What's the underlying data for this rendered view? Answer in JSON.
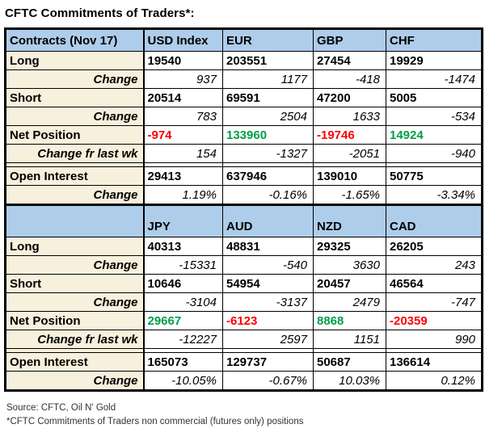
{
  "title": "CFTC Commitments of Traders*:",
  "colors": {
    "header_bg": "#aecdeb",
    "label_bg": "#f6f0dc",
    "positive": "#009e49",
    "negative": "#ff0000",
    "border": "#000000"
  },
  "table_view": {
    "sections": [
      {
        "header": [
          "Contracts (Nov 17)",
          "USD Index",
          "EUR",
          "GBP",
          "CHF"
        ],
        "rows": [
          {
            "type": "bold",
            "label": "Long",
            "values": [
              "19540",
              "203551",
              "27454",
              "19929"
            ]
          },
          {
            "type": "change",
            "label": "Change",
            "values": [
              "937",
              "1177",
              "-418",
              "-1474"
            ]
          },
          {
            "type": "bold",
            "label": "Short",
            "values": [
              "20514",
              "69591",
              "47200",
              "5005"
            ]
          },
          {
            "type": "change",
            "label": "Change",
            "values": [
              "783",
              "2504",
              "1633",
              "-534"
            ]
          },
          {
            "type": "net",
            "label": "Net Position",
            "values": [
              "-974",
              "133960",
              "-19746",
              "14924"
            ]
          },
          {
            "type": "change",
            "label": "Change fr last wk",
            "values": [
              "154",
              "-1327",
              "-2051",
              "-940"
            ]
          },
          {
            "type": "spacer"
          },
          {
            "type": "bold",
            "label": "Open Interest",
            "values": [
              "29413",
              "637946",
              "139010",
              "50775"
            ]
          },
          {
            "type": "change",
            "label": "Change",
            "values": [
              "1.19%",
              "-0.16%",
              "-1.65%",
              "-3.34%"
            ]
          }
        ]
      },
      {
        "header": [
          "",
          "JPY",
          "AUD",
          "NZD",
          "CAD"
        ],
        "rows": [
          {
            "type": "bold",
            "label": "Long",
            "values": [
              "40313",
              "48831",
              "29325",
              "26205"
            ]
          },
          {
            "type": "change",
            "label": "Change",
            "values": [
              "-15331",
              "-540",
              "3630",
              "243"
            ]
          },
          {
            "type": "bold",
            "label": "Short",
            "values": [
              "10646",
              "54954",
              "20457",
              "46564"
            ]
          },
          {
            "type": "change",
            "label": "Change",
            "values": [
              "-3104",
              "-3137",
              "2479",
              "-747"
            ]
          },
          {
            "type": "net",
            "label": "Net Position",
            "values": [
              "29667",
              "-6123",
              "8868",
              "-20359"
            ]
          },
          {
            "type": "change",
            "label": "Change fr last wk",
            "values": [
              "-12227",
              "2597",
              "1151",
              "990"
            ]
          },
          {
            "type": "spacer"
          },
          {
            "type": "bold",
            "label": "Open Interest",
            "values": [
              "165073",
              "129737",
              "50687",
              "136614"
            ]
          },
          {
            "type": "change",
            "label": "Change",
            "values": [
              "-10.05%",
              "-0.67%",
              "10.03%",
              "0.12%"
            ]
          }
        ]
      }
    ]
  },
  "footer": {
    "source": "Source: CFTC, Oil N' Gold",
    "note": "*CFTC Commitments of Traders non commercial (futures only) positions"
  },
  "chart_data": {
    "type": "table",
    "title": "CFTC Commitments of Traders*:",
    "tables": [
      {
        "columns": [
          "Contracts (Nov 17)",
          "USD Index",
          "EUR",
          "GBP",
          "CHF"
        ],
        "rows": [
          [
            "Long",
            19540,
            203551,
            27454,
            19929
          ],
          [
            "Change",
            937,
            1177,
            -418,
            -1474
          ],
          [
            "Short",
            20514,
            69591,
            47200,
            5005
          ],
          [
            "Change",
            783,
            2504,
            1633,
            -534
          ],
          [
            "Net Position",
            -974,
            133960,
            -19746,
            14924
          ],
          [
            "Change fr last wk",
            154,
            -1327,
            -2051,
            -940
          ],
          [
            "Open Interest",
            29413,
            637946,
            139010,
            50775
          ],
          [
            "Change",
            "1.19%",
            "-0.16%",
            "-1.65%",
            "-3.34%"
          ]
        ]
      },
      {
        "columns": [
          "",
          "JPY",
          "AUD",
          "NZD",
          "CAD"
        ],
        "rows": [
          [
            "Long",
            40313,
            48831,
            29325,
            26205
          ],
          [
            "Change",
            -15331,
            -540,
            3630,
            243
          ],
          [
            "Short",
            10646,
            54954,
            20457,
            46564
          ],
          [
            "Change",
            -3104,
            -3137,
            2479,
            -747
          ],
          [
            "Net Position",
            29667,
            -6123,
            8868,
            -20359
          ],
          [
            "Change fr last wk",
            -12227,
            2597,
            1151,
            990
          ],
          [
            "Open Interest",
            165073,
            129737,
            50687,
            136614
          ],
          [
            "Change",
            "-10.05%",
            "-0.67%",
            "10.03%",
            "0.12%"
          ]
        ]
      }
    ],
    "notes": {
      "net_position_color_rule": "negative values red, positive values green",
      "source": "Source: CFTC, Oil N' Gold",
      "footnote": "*CFTC Commitments of Traders non commercial (futures only) positions"
    }
  }
}
